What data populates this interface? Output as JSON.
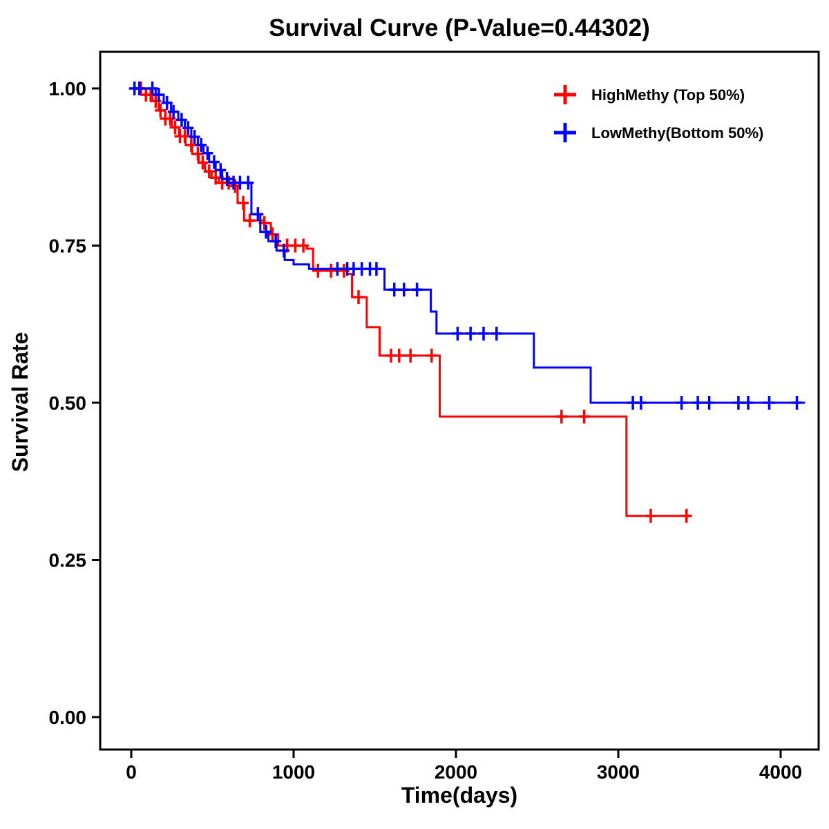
{
  "chart_data": {
    "type": "line",
    "chart_kind": "kaplan-meier-step",
    "title": "Survival Curve (P-Value=0.44302)",
    "xlabel": "Time(days)",
    "ylabel": "Survival Rate",
    "xlim": [
      0,
      4000
    ],
    "ylim": [
      0.0,
      1.0
    ],
    "grid": false,
    "legend_position": "top-right",
    "x_ticks": [
      {
        "value": 0,
        "label": "0"
      },
      {
        "value": 1000,
        "label": "1000"
      },
      {
        "value": 2000,
        "label": "2000"
      },
      {
        "value": 3000,
        "label": "3000"
      },
      {
        "value": 4000,
        "label": "4000"
      }
    ],
    "y_ticks": [
      {
        "value": 0.0,
        "label": "0.00"
      },
      {
        "value": 0.25,
        "label": "0.25"
      },
      {
        "value": 0.5,
        "label": "0.50"
      },
      {
        "value": 0.75,
        "label": "0.75"
      },
      {
        "value": 1.0,
        "label": "1.00"
      }
    ],
    "series": [
      {
        "name": "HighMethy (Top 50%)",
        "color": "#FF0000",
        "marker": "plus",
        "end_time": 3450,
        "steps": [
          [
            0,
            1.0
          ],
          [
            90,
            0.99
          ],
          [
            130,
            0.98
          ],
          [
            170,
            0.965
          ],
          [
            210,
            0.952
          ],
          [
            250,
            0.938
          ],
          [
            295,
            0.924
          ],
          [
            335,
            0.91
          ],
          [
            375,
            0.896
          ],
          [
            415,
            0.882
          ],
          [
            455,
            0.868
          ],
          [
            495,
            0.858
          ],
          [
            540,
            0.85
          ],
          [
            620,
            0.845
          ],
          [
            655,
            0.818
          ],
          [
            695,
            0.79
          ],
          [
            820,
            0.786
          ],
          [
            860,
            0.768
          ],
          [
            905,
            0.75
          ],
          [
            1080,
            0.745
          ],
          [
            1120,
            0.71
          ],
          [
            1330,
            0.705
          ],
          [
            1360,
            0.668
          ],
          [
            1450,
            0.62
          ],
          [
            1530,
            0.575
          ],
          [
            1900,
            0.478
          ],
          [
            3050,
            0.32
          ]
        ],
        "censor_times": [
          60,
          90,
          120,
          150,
          180,
          210,
          240,
          270,
          300,
          330,
          370,
          410,
          440,
          480,
          520,
          560,
          600,
          640,
          690,
          730,
          820,
          870,
          960,
          1010,
          1060,
          1150,
          1230,
          1310,
          1400,
          1600,
          1650,
          1720,
          1850,
          2650,
          2790,
          3200,
          3420
        ]
      },
      {
        "name": "LowMethy(Bottom 50%)",
        "color": "#0000FF",
        "marker": "plus",
        "end_time": 4150,
        "steps": [
          [
            0,
            1.0
          ],
          [
            150,
            0.99
          ],
          [
            200,
            0.977
          ],
          [
            245,
            0.963
          ],
          [
            290,
            0.95
          ],
          [
            330,
            0.937
          ],
          [
            370,
            0.923
          ],
          [
            410,
            0.91
          ],
          [
            445,
            0.897
          ],
          [
            480,
            0.883
          ],
          [
            520,
            0.87
          ],
          [
            560,
            0.856
          ],
          [
            600,
            0.85
          ],
          [
            740,
            0.8
          ],
          [
            795,
            0.772
          ],
          [
            845,
            0.757
          ],
          [
            895,
            0.742
          ],
          [
            945,
            0.727
          ],
          [
            1000,
            0.72
          ],
          [
            1095,
            0.713
          ],
          [
            1560,
            0.68
          ],
          [
            1845,
            0.645
          ],
          [
            1880,
            0.61
          ],
          [
            2480,
            0.556
          ],
          [
            2830,
            0.5
          ]
        ],
        "censor_times": [
          20,
          50,
          130,
          170,
          220,
          260,
          310,
          350,
          390,
          430,
          470,
          510,
          550,
          590,
          630,
          670,
          720,
          780,
          830,
          890,
          940,
          1270,
          1330,
          1370,
          1420,
          1470,
          1510,
          1620,
          1680,
          1760,
          2010,
          2090,
          2170,
          2250,
          3090,
          3140,
          3390,
          3490,
          3560,
          3740,
          3800,
          3930,
          4100
        ]
      }
    ]
  }
}
